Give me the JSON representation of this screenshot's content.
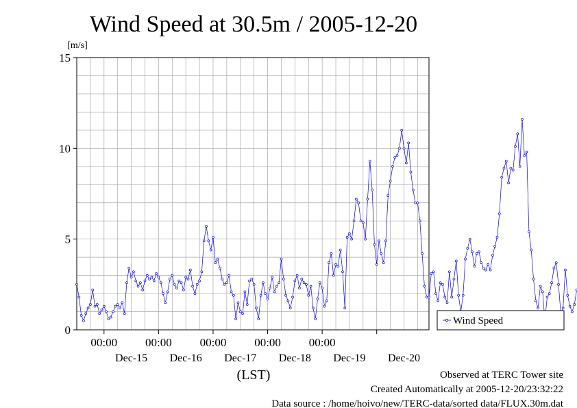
{
  "chart_data": {
    "type": "line",
    "title": "Wind Speed at 30.5m / 2005-12-20",
    "ylabel": "[m/s]",
    "xlabel": "(LST)",
    "ylim": [
      0,
      15
    ],
    "yticks": [
      "0",
      "5",
      "10",
      "15"
    ],
    "xlim": [
      "2005-12-14 12:00",
      "2005-12-20 23:00"
    ],
    "time_ticks": [
      "00:00",
      "00:00",
      "00:00",
      "00:00",
      "00:00"
    ],
    "date_ticks": [
      "Dec-15",
      "Dec-16",
      "Dec-17",
      "Dec-18",
      "Dec-19",
      "Dec-20"
    ],
    "grid": true,
    "legend_position": "right",
    "series": [
      {
        "name": "Wind Speed",
        "color": "#0000ff",
        "interval_hours": 1,
        "x_start": "2005-12-14 12:00",
        "values": [
          2.5,
          1.8,
          0.8,
          0.5,
          0.9,
          1.2,
          1.4,
          2.2,
          1.3,
          1.4,
          0.9,
          1.1,
          1.3,
          1.0,
          0.6,
          0.7,
          1.0,
          1.3,
          1.4,
          1.2,
          1.5,
          0.9,
          2.6,
          3.4,
          2.9,
          3.2,
          2.7,
          2.4,
          2.6,
          2.2,
          2.7,
          3.0,
          2.8,
          2.9,
          2.7,
          3.1,
          2.9,
          2.6,
          2.0,
          1.5,
          2.1,
          2.8,
          3.0,
          2.5,
          2.3,
          2.7,
          2.6,
          2.2,
          2.9,
          2.8,
          3.3,
          2.4,
          2.0,
          2.5,
          2.7,
          3.2,
          4.9,
          5.7,
          4.9,
          4.4,
          5.1,
          3.7,
          3.9,
          3.4,
          2.8,
          2.5,
          2.6,
          3.0,
          2.1,
          1.9,
          0.6,
          1.5,
          1.0,
          0.9,
          2.1,
          1.4,
          2.7,
          2.8,
          2.5,
          1.2,
          0.6,
          1.9,
          2.6,
          2.0,
          1.7,
          2.3,
          2.9,
          2.1,
          2.4,
          2.6,
          3.9,
          2.8,
          1.9,
          1.6,
          1.2,
          1.8,
          2.7,
          3.0,
          2.3,
          2.8,
          2.6,
          2.5,
          1.9,
          2.4,
          1.2,
          0.6,
          1.7,
          2.6,
          2.3,
          1.3,
          1.6,
          3.7,
          4.2,
          3.0,
          3.6,
          3.5,
          4.4,
          3.2,
          1.2,
          5.1,
          5.3,
          5.0,
          6.0,
          7.2,
          7.0,
          6.0,
          5.9,
          5.0,
          7.2,
          9.3,
          7.7,
          4.7,
          3.6,
          4.9,
          4.2,
          3.7,
          4.9,
          7.4,
          8.2,
          9.0,
          9.5,
          9.6,
          10.0,
          11.0,
          10.0,
          9.2,
          10.3,
          8.7,
          7.7,
          7.0,
          7.0,
          6.0,
          4.2,
          2.4,
          1.8,
          1.8,
          3.1,
          3.2,
          2.0,
          1.6,
          2.6,
          2.5,
          1.8,
          1.5,
          3.2,
          1.8,
          2.8,
          3.8,
          1.9,
          1.0,
          1.9,
          3.9,
          4.5,
          5.0,
          4.3,
          3.5,
          4.2,
          4.3,
          3.7,
          3.4,
          3.3,
          3.6,
          3.3,
          4.1,
          4.6,
          5.1,
          6.4,
          8.4,
          8.9,
          9.3,
          8.1,
          8.9,
          8.8,
          10.1,
          10.8,
          9.0,
          11.6,
          9.6,
          9.8,
          5.4,
          4.4,
          2.8,
          1.6,
          1.2,
          2.4,
          2.1,
          0.5,
          1.8,
          2.0,
          2.6,
          3.4,
          3.7,
          2.5,
          0.9,
          1.2,
          3.3,
          1.9,
          1.3,
          1.0,
          1.4,
          2.2,
          2.1,
          1.9,
          2.3,
          2.0,
          1.8,
          2.7,
          2.6,
          2.2,
          1.8,
          2.5,
          1.9,
          2.1,
          1.7,
          2.4,
          2.1,
          3.2,
          2.3,
          2.5,
          1.9,
          1.4,
          0.8,
          1.1,
          0.6,
          1.5,
          2.7,
          2.9,
          2.2,
          2.5,
          1.6,
          1.3,
          1.4,
          1.5,
          1.8,
          2.2,
          1.7,
          1.3,
          1.0,
          1.2
        ]
      }
    ]
  },
  "footer": {
    "observed": "Observed at TERC Tower site",
    "created": "Created Automatically at 2005-12-20/23:32:22",
    "source": "Data source : /home/hoivo/new/TERC-data/sorted data/FLUX.30m.dat"
  }
}
